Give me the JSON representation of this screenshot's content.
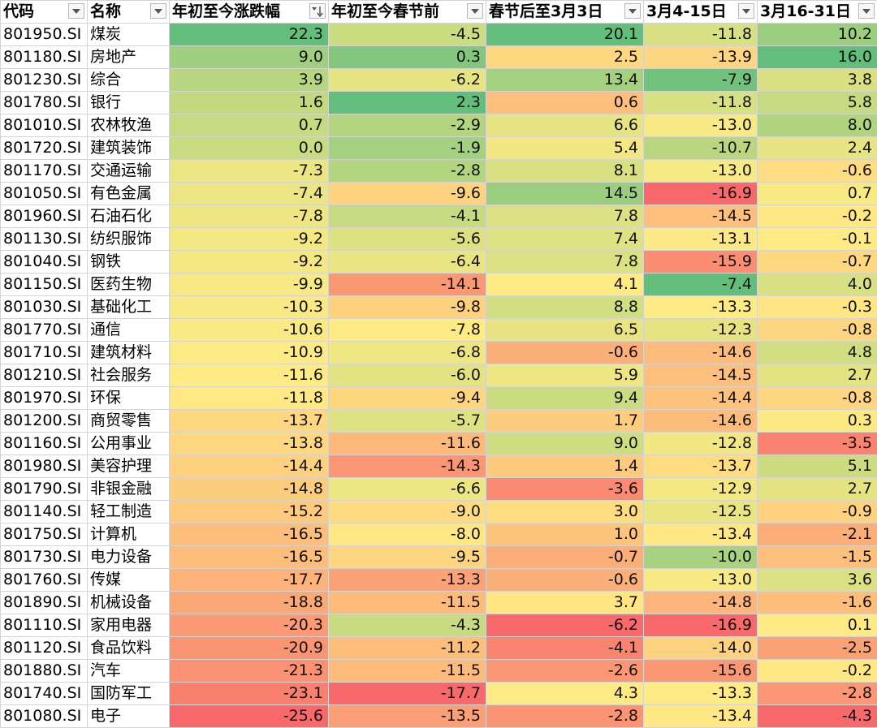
{
  "headers": [
    {
      "label": "代码",
      "sort": false
    },
    {
      "label": "名称",
      "sort": false
    },
    {
      "label": "年初至今涨跌幅",
      "sort": true
    },
    {
      "label": "年初至今春节前",
      "sort": false
    },
    {
      "label": "春节后至3月3日",
      "sort": false
    },
    {
      "label": "3月4-15日",
      "sort": false
    },
    {
      "label": "3月16-31日",
      "sort": false
    }
  ],
  "rows": [
    {
      "code": "801950.SI",
      "name": "煤炭",
      "values": [
        "22.3",
        "-4.5",
        "20.1",
        "-11.8",
        "10.2"
      ]
    },
    {
      "code": "801180.SI",
      "name": "房地产",
      "values": [
        "9.0",
        "0.3",
        "2.5",
        "-13.9",
        "16.0"
      ]
    },
    {
      "code": "801230.SI",
      "name": "综合",
      "values": [
        "3.9",
        "-6.2",
        "13.4",
        "-7.9",
        "3.8"
      ]
    },
    {
      "code": "801780.SI",
      "name": "银行",
      "values": [
        "1.6",
        "2.3",
        "0.6",
        "-11.8",
        "5.8"
      ]
    },
    {
      "code": "801010.SI",
      "name": "农林牧渔",
      "values": [
        "0.7",
        "-2.9",
        "6.6",
        "-13.0",
        "8.0"
      ]
    },
    {
      "code": "801720.SI",
      "name": "建筑装饰",
      "values": [
        "0.0",
        "-1.9",
        "5.4",
        "-10.7",
        "2.4"
      ]
    },
    {
      "code": "801170.SI",
      "name": "交通运输",
      "values": [
        "-7.3",
        "-2.8",
        "8.1",
        "-13.0",
        "-0.6"
      ]
    },
    {
      "code": "801050.SI",
      "name": "有色金属",
      "values": [
        "-7.4",
        "-9.6",
        "14.5",
        "-16.9",
        "0.7"
      ]
    },
    {
      "code": "801960.SI",
      "name": "石油石化",
      "values": [
        "-7.8",
        "-4.1",
        "7.8",
        "-14.5",
        "-0.2"
      ]
    },
    {
      "code": "801130.SI",
      "name": "纺织服饰",
      "values": [
        "-9.2",
        "-5.6",
        "7.4",
        "-13.1",
        "-0.1"
      ]
    },
    {
      "code": "801040.SI",
      "name": "钢铁",
      "values": [
        "-9.2",
        "-6.4",
        "7.8",
        "-15.9",
        "-0.7"
      ]
    },
    {
      "code": "801150.SI",
      "name": "医药生物",
      "values": [
        "-9.9",
        "-14.1",
        "4.1",
        "-7.4",
        "4.0"
      ]
    },
    {
      "code": "801030.SI",
      "name": "基础化工",
      "values": [
        "-10.3",
        "-9.8",
        "8.8",
        "-13.3",
        "-0.3"
      ]
    },
    {
      "code": "801770.SI",
      "name": "通信",
      "values": [
        "-10.6",
        "-7.8",
        "6.5",
        "-12.3",
        "-0.8"
      ]
    },
    {
      "code": "801710.SI",
      "name": "建筑材料",
      "values": [
        "-10.9",
        "-6.8",
        "-0.6",
        "-14.6",
        "4.8"
      ]
    },
    {
      "code": "801210.SI",
      "name": "社会服务",
      "values": [
        "-11.6",
        "-6.0",
        "5.9",
        "-14.5",
        "2.7"
      ]
    },
    {
      "code": "801970.SI",
      "name": "环保",
      "values": [
        "-11.8",
        "-9.4",
        "9.4",
        "-14.4",
        "-0.8"
      ]
    },
    {
      "code": "801200.SI",
      "name": "商贸零售",
      "values": [
        "-13.7",
        "-5.7",
        "1.7",
        "-14.6",
        "0.3"
      ]
    },
    {
      "code": "801160.SI",
      "name": "公用事业",
      "values": [
        "-13.8",
        "-11.6",
        "9.0",
        "-12.8",
        "-3.5"
      ]
    },
    {
      "code": "801980.SI",
      "name": "美容护理",
      "values": [
        "-14.4",
        "-14.3",
        "1.4",
        "-13.7",
        "5.1"
      ]
    },
    {
      "code": "801790.SI",
      "name": "非银金融",
      "values": [
        "-14.8",
        "-6.6",
        "-3.6",
        "-12.9",
        "2.7"
      ]
    },
    {
      "code": "801140.SI",
      "name": "轻工制造",
      "values": [
        "-15.2",
        "-9.0",
        "3.0",
        "-12.5",
        "-0.9"
      ]
    },
    {
      "code": "801750.SI",
      "name": "计算机",
      "values": [
        "-16.5",
        "-8.0",
        "1.0",
        "-13.4",
        "-2.1"
      ]
    },
    {
      "code": "801730.SI",
      "name": "电力设备",
      "values": [
        "-16.5",
        "-9.5",
        "-0.7",
        "-10.0",
        "-1.5"
      ]
    },
    {
      "code": "801760.SI",
      "name": "传媒",
      "values": [
        "-17.7",
        "-13.3",
        "-0.6",
        "-13.0",
        "3.6"
      ]
    },
    {
      "code": "801890.SI",
      "name": "机械设备",
      "values": [
        "-18.8",
        "-11.5",
        "3.7",
        "-14.8",
        "-1.6"
      ]
    },
    {
      "code": "801110.SI",
      "name": "家用电器",
      "values": [
        "-20.3",
        "-4.3",
        "-6.2",
        "-16.9",
        "0.1"
      ]
    },
    {
      "code": "801120.SI",
      "name": "食品饮料",
      "values": [
        "-20.9",
        "-11.2",
        "-4.1",
        "-14.0",
        "-2.5"
      ]
    },
    {
      "code": "801880.SI",
      "name": "汽车",
      "values": [
        "-21.3",
        "-11.5",
        "-2.6",
        "-15.6",
        "-0.2"
      ]
    },
    {
      "code": "801740.SI",
      "name": "国防军工",
      "values": [
        "-23.1",
        "-17.7",
        "4.3",
        "-13.3",
        "-2.8"
      ]
    },
    {
      "code": "801080.SI",
      "name": "电子",
      "values": [
        "-25.6",
        "-13.5",
        "-2.8",
        "-13.4",
        "-4.3"
      ]
    }
  ],
  "colors": {
    "low": "#f8696b",
    "mid": "#ffeb84",
    "high": "#63be7b"
  }
}
